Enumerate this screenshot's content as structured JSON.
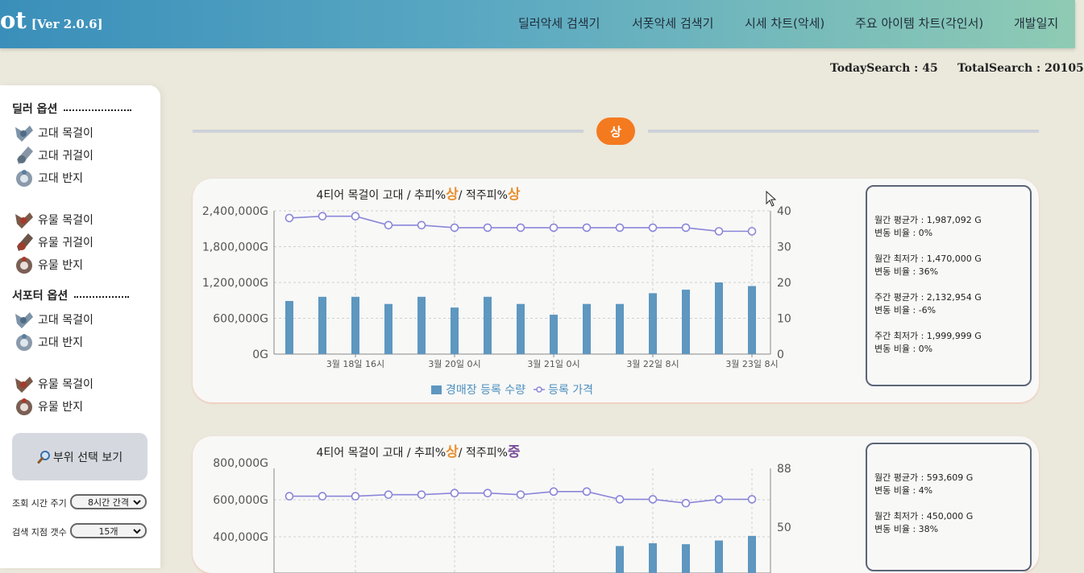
{
  "header": {
    "logo": "ot",
    "version": "[Ver 2.0.6]",
    "nav": [
      "딜러악세 검색기",
      "서폿악세 검색기",
      "시세 차트(악세)",
      "주요 아이템 차트(각인서)",
      "개발일지"
    ]
  },
  "stats": {
    "today": "TodaySearch : 45",
    "total": "TotalSearch : 20105"
  },
  "sidebar": {
    "dealer_title": "딜러 옵션",
    "dealer_items": [
      {
        "label": "고대 목걸이",
        "icon": "ancient-necklace-icon"
      },
      {
        "label": "고대 귀걸이",
        "icon": "ancient-earring-icon"
      },
      {
        "label": "고대 반지",
        "icon": "ancient-ring-icon"
      },
      {
        "label": "유물 목걸이",
        "icon": "relic-necklace-icon"
      },
      {
        "label": "유물 귀걸이",
        "icon": "relic-earring-icon"
      },
      {
        "label": "유물 반지",
        "icon": "relic-ring-icon"
      }
    ],
    "support_title": "서포터 옵션",
    "support_items": [
      {
        "label": "고대 목걸이",
        "icon": "ancient-necklace-icon"
      },
      {
        "label": "고대 반지",
        "icon": "ancient-ring-icon"
      },
      {
        "label": "유물 목걸이",
        "icon": "relic-necklace-icon"
      },
      {
        "label": "유물 반지",
        "icon": "relic-ring-icon"
      }
    ],
    "view_button": "부위 선택 보기",
    "interval_label": "조회 시간 주기",
    "interval_value": "8시간 간격",
    "points_label": "검색 지점 갯수",
    "points_value": "15개"
  },
  "section_grade": "상",
  "colors": {
    "accent": "#f47a1f",
    "bar": "#5e97c0",
    "line": "#8a86d8",
    "grade_high": "#e89030",
    "grade_mid": "#7a4f9a"
  },
  "cards": [
    {
      "title_prefix": "4티어 목걸이 고대 / 추피%",
      "grade1": "상",
      "title_mid": "/ 적주피%",
      "grade2": "상",
      "info": [
        [
          "월간 평균가 : 1,987,092 G",
          "변동 비율 : 0%"
        ],
        [
          "월간 최저가 : 1,470,000 G",
          "변동 비율 : 36%"
        ],
        [
          "주간 평균가 : 2,132,954 G",
          "변동 비율 : -6%"
        ],
        [
          "주간 최저가 : 1,999,999 G",
          "변동 비율 : 0%"
        ]
      ]
    },
    {
      "title_prefix": "4티어 목걸이 고대 / 추피%",
      "grade1": "상",
      "title_mid": "/ 적주피%",
      "grade2": "중",
      "info": [
        [
          "월간 평균가 : 593,609 G",
          "변동 비율 : 4%"
        ],
        [
          "월간 최저가 : 450,000 G",
          "변동 비율 : 38%"
        ]
      ]
    }
  ],
  "chart_data": [
    {
      "type": "bar+line",
      "legend": [
        "경매장 등록 수량",
        "등록 가격"
      ],
      "x_ticks": [
        "3월 18일 16시",
        "3월 20일 0시",
        "3월 21일 0시",
        "3월 22일 8시",
        "3월 23일 8시"
      ],
      "left_axis_ticks": [
        "2,400,000G",
        "1,800,000G",
        "1,200,000G",
        "600,000G",
        "0G"
      ],
      "right_axis_ticks": [
        "40",
        "30",
        "20",
        "10",
        "0"
      ],
      "ylim_left": [
        0,
        2400000
      ],
      "ylim_right": [
        0,
        40
      ],
      "series": [
        {
          "name": "경매장 등록 수량",
          "axis": "left",
          "values": [
            890000,
            960000,
            960000,
            840000,
            960000,
            780000,
            960000,
            840000,
            660000,
            840000,
            840000,
            1020000,
            1080000,
            1200000,
            1140000
          ]
        },
        {
          "name": "등록 가격",
          "axis": "right",
          "values": [
            38,
            38.5,
            38.5,
            36,
            36,
            35.3,
            35.3,
            35.3,
            35.3,
            35.3,
            35.3,
            35.3,
            35.3,
            34.3,
            34.3
          ]
        }
      ]
    },
    {
      "type": "bar+line",
      "left_axis_ticks": [
        "800,000G",
        "600,000G",
        "400,000G"
      ],
      "right_axis_ticks": [
        "88",
        "50"
      ],
      "series": [
        {
          "name": "등록 가격",
          "axis": "right",
          "values": [
            70,
            70,
            70,
            71,
            71,
            72,
            72,
            71,
            73,
            73,
            68,
            68,
            65.5,
            68,
            68
          ]
        },
        {
          "name": "경매장 등록 수량",
          "axis": "left",
          "values": [
            0,
            0,
            0,
            0,
            0,
            0,
            0,
            0,
            0,
            0,
            350000,
            365000,
            360000,
            380000,
            405000
          ]
        }
      ]
    }
  ]
}
